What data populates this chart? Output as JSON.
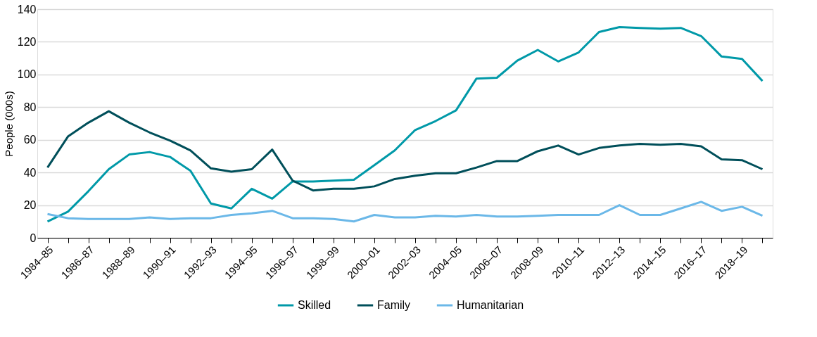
{
  "chart_data": {
    "type": "line",
    "ylabel": "People (000s)",
    "ylim": [
      0,
      140
    ],
    "yticks": [
      0,
      20,
      40,
      60,
      80,
      100,
      120,
      140
    ],
    "grid": "y",
    "legend": "bottom",
    "line_style": "solid",
    "marker": "none",
    "categories": [
      "1984–85",
      null,
      "1986–87",
      null,
      "1988–89",
      null,
      "1990–91",
      null,
      "1992–93",
      null,
      "1994–95",
      null,
      "1996–97",
      null,
      "1998–99",
      null,
      "2000–01",
      null,
      "2002–03",
      null,
      "2004–05",
      null,
      "2006–07",
      null,
      "2008–09",
      null,
      "2010–11",
      null,
      "2012–13",
      null,
      "2014–15",
      null,
      "2016–17",
      null,
      "2018–19",
      null
    ],
    "series": [
      {
        "name": "Skilled",
        "color": "#0099a8",
        "values": [
          10,
          16,
          28.5,
          42,
          51,
          52.5,
          49.5,
          41,
          21,
          18,
          30,
          24,
          34.5,
          34.5,
          35,
          35.5,
          44.5,
          53.5,
          66,
          71.5,
          78,
          97.5,
          98,
          108.5,
          115,
          108,
          113.5,
          126,
          129,
          128.5,
          128,
          128.5,
          123.5,
          111,
          109.5,
          96
        ]
      },
      {
        "name": "Family",
        "color": "#004f5a",
        "values": [
          43,
          62,
          70.5,
          77.5,
          70.5,
          64.5,
          59.5,
          53.5,
          42.5,
          40.5,
          42,
          54,
          35,
          29,
          30,
          30,
          31.5,
          36,
          38,
          39.5,
          39.5,
          43,
          47,
          47,
          53,
          56.5,
          51,
          55,
          56.5,
          57.5,
          57,
          57.5,
          56,
          48,
          47.5,
          42
        ]
      },
      {
        "name": "Humanitarian",
        "color": "#6bb8e8",
        "values": [
          14.5,
          12,
          11.5,
          11.5,
          11.5,
          12.5,
          11.5,
          12,
          12,
          14,
          15,
          16.5,
          12,
          12,
          11.5,
          10,
          14,
          12.5,
          12.5,
          13.5,
          13,
          14,
          13,
          13,
          13.5,
          14,
          14,
          14,
          20,
          14,
          14,
          18,
          22,
          16.5,
          19,
          13.5
        ]
      }
    ]
  }
}
